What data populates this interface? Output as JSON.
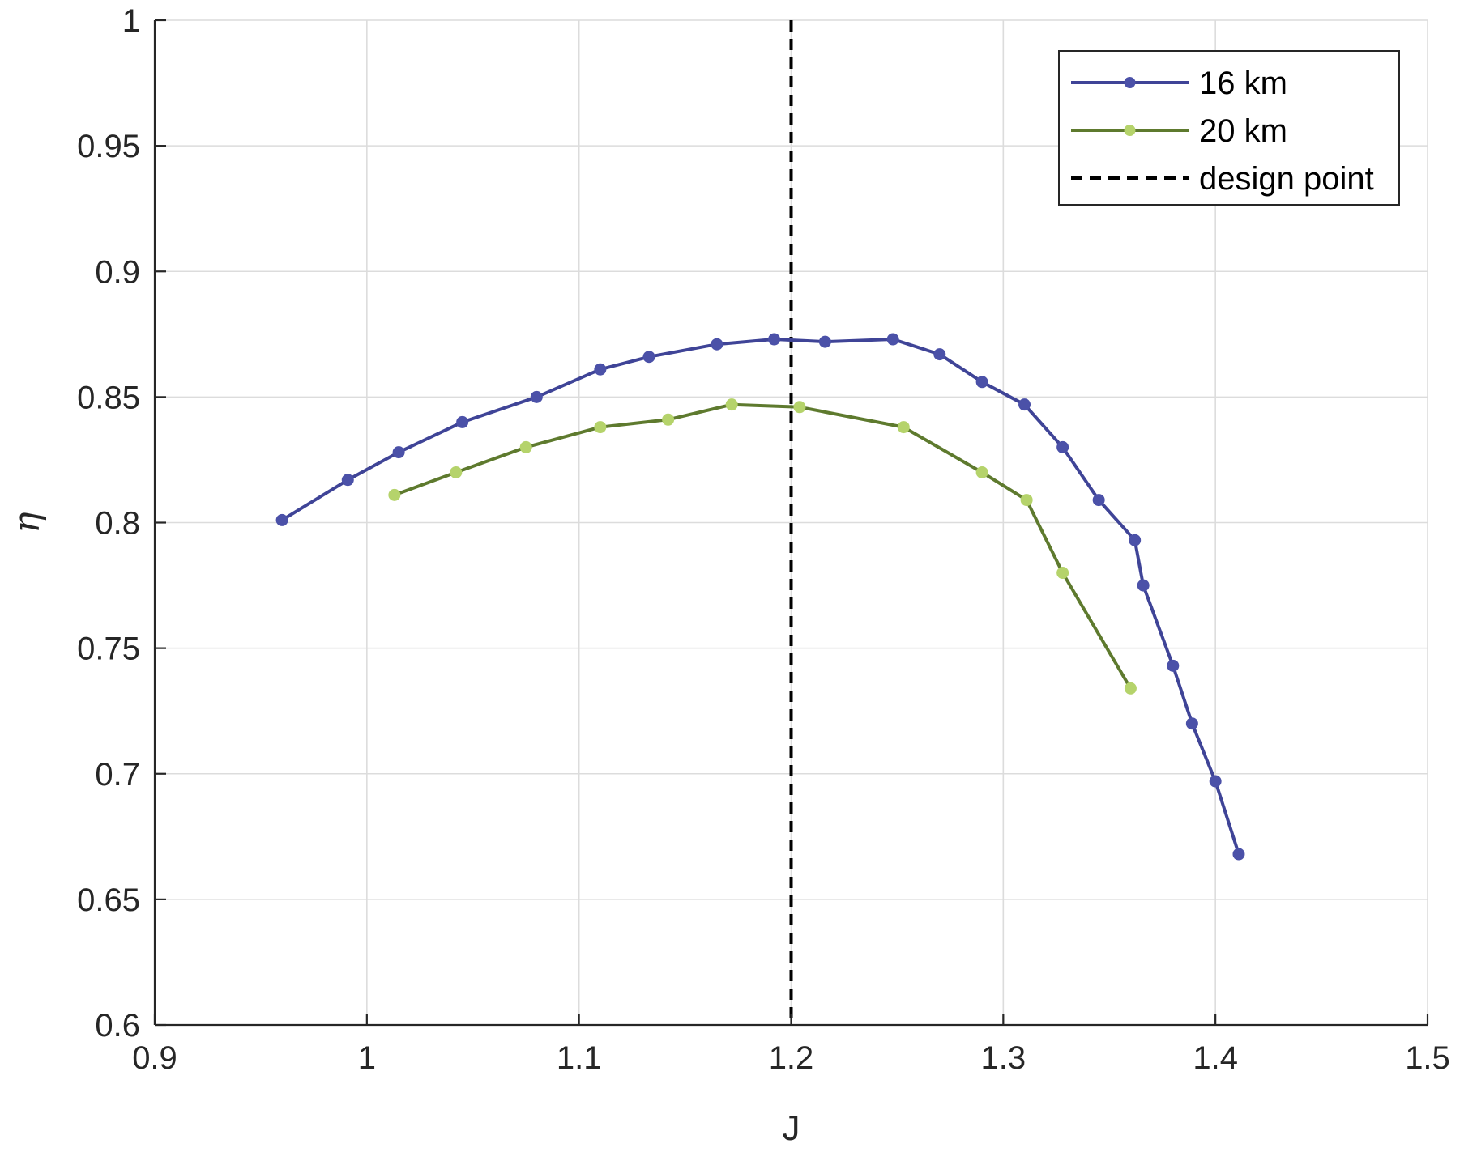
{
  "chart_data": {
    "type": "line",
    "title": "",
    "xlabel": "J",
    "ylabel": "η",
    "xlim": [
      0.9,
      1.5
    ],
    "ylim": [
      0.6,
      1.0
    ],
    "xticks": [
      "0.9",
      "1",
      "1.1",
      "1.2",
      "1.3",
      "1.4",
      "1.5"
    ],
    "yticks": [
      "0.6",
      "0.65",
      "0.7",
      "0.75",
      "0.8",
      "0.85",
      "0.9",
      "0.95",
      "1"
    ],
    "grid": true,
    "legend_position": "top-right",
    "series": [
      {
        "name": "16 km",
        "color": "#3f4497",
        "marker_color": "#4b51a8",
        "x": [
          0.96,
          0.991,
          1.015,
          1.045,
          1.08,
          1.11,
          1.133,
          1.165,
          1.192,
          1.216,
          1.248,
          1.27,
          1.29,
          1.31,
          1.328,
          1.345,
          1.362,
          1.366,
          1.38,
          1.389,
          1.4,
          1.411
        ],
        "y": [
          0.801,
          0.817,
          0.828,
          0.84,
          0.85,
          0.861,
          0.866,
          0.871,
          0.873,
          0.872,
          0.873,
          0.867,
          0.856,
          0.847,
          0.83,
          0.809,
          0.793,
          0.775,
          0.743,
          0.72,
          0.697,
          0.668
        ]
      },
      {
        "name": "20 km",
        "color": "#5e7a2e",
        "marker_color": "#b5d36b",
        "x": [
          1.013,
          1.042,
          1.075,
          1.11,
          1.142,
          1.172,
          1.204,
          1.253,
          1.29,
          1.311,
          1.328,
          1.36
        ],
        "y": [
          0.811,
          0.82,
          0.83,
          0.838,
          0.841,
          0.847,
          0.846,
          0.838,
          0.82,
          0.809,
          0.78,
          0.734
        ]
      }
    ],
    "reference_line": {
      "name": "design point",
      "x": 1.2,
      "color": "#000000",
      "style": "dashed"
    }
  }
}
